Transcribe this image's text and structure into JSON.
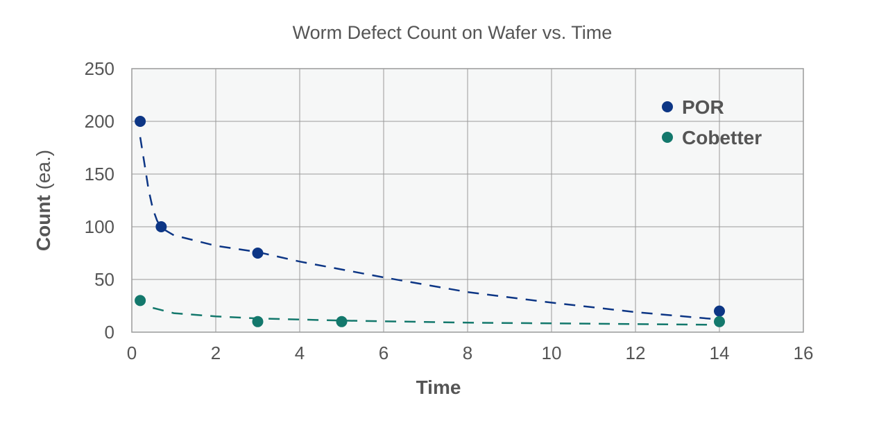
{
  "chart_data": {
    "type": "scatter",
    "title": "Worm Defect Count on Wafer vs. Time",
    "xlabel": "Time",
    "ylabel_bold": "Count",
    "ylabel_unit": "(ea.)",
    "xlim": [
      0,
      16
    ],
    "ylim": [
      0,
      250
    ],
    "xticks": [
      0,
      2,
      4,
      6,
      8,
      10,
      12,
      14,
      16
    ],
    "yticks": [
      0,
      50,
      100,
      150,
      200,
      250
    ],
    "grid": true,
    "legend_position": "top-right",
    "series": [
      {
        "name": "POR",
        "color": "#0d3685",
        "points": [
          [
            0.2,
            200
          ],
          [
            0.7,
            100
          ],
          [
            3,
            75
          ],
          [
            14,
            20
          ]
        ],
        "trendline": [
          [
            0.2,
            185
          ],
          [
            0.3,
            160
          ],
          [
            0.4,
            135
          ],
          [
            0.5,
            117
          ],
          [
            0.6,
            106
          ],
          [
            0.7,
            99
          ],
          [
            1,
            92
          ],
          [
            2,
            82
          ],
          [
            3,
            76
          ],
          [
            4,
            67
          ],
          [
            6,
            52
          ],
          [
            8,
            38
          ],
          [
            10,
            28
          ],
          [
            12,
            19
          ],
          [
            14,
            12
          ]
        ]
      },
      {
        "name": "Cobetter",
        "color": "#13786c",
        "points": [
          [
            0.2,
            30
          ],
          [
            3,
            10
          ],
          [
            5,
            10
          ],
          [
            14,
            10
          ]
        ],
        "trendline": [
          [
            0.5,
            23
          ],
          [
            1,
            18
          ],
          [
            2,
            15
          ],
          [
            3,
            13
          ],
          [
            5,
            11
          ],
          [
            8,
            9
          ],
          [
            11,
            8
          ],
          [
            14,
            7
          ]
        ]
      }
    ]
  }
}
